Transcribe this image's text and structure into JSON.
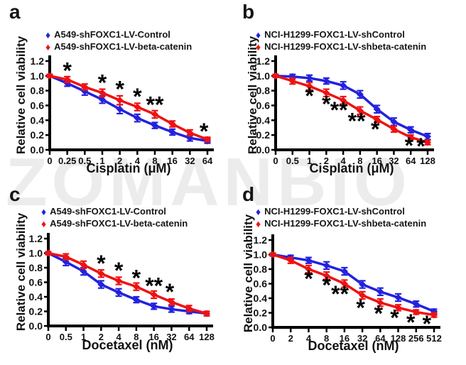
{
  "watermark": "ZOMANBIO",
  "icons": {
    "diamond": "♦"
  },
  "colors": {
    "control_blue": "#2222DE",
    "betacatenin_red": "#EE1212",
    "axis_black": "#000000",
    "asterisk_black": "#000000",
    "watermark_gray": "#ECECEC"
  },
  "chart_data": [
    {
      "type": "line",
      "label": "a",
      "xlabel": "Cisplatin (μM)",
      "ylabel": "Relative cell viability",
      "ylim": [
        0,
        1.2
      ],
      "yticks": [
        "0.0",
        "0.2",
        "0.4",
        "0.6",
        "0.8",
        "1.0",
        "1.2"
      ],
      "categories": [
        "0",
        "0.25",
        "0.5",
        "1",
        "2",
        "4",
        "8",
        "16",
        "32",
        "64"
      ],
      "legend_position": "top",
      "grid": false,
      "series": [
        {
          "name": "A549-shFOXC1-LV-Control",
          "color": "#2222DE",
          "values": [
            1.0,
            0.9,
            0.79,
            0.68,
            0.55,
            0.43,
            0.33,
            0.24,
            0.16,
            0.12
          ],
          "errors": [
            0.02,
            0.04,
            0.05,
            0.05,
            0.06,
            0.05,
            0.04,
            0.04,
            0.04,
            0.03
          ]
        },
        {
          "name": "A549-shFOXC1-LV-beta-catenin",
          "color": "#EE1212",
          "values": [
            1.0,
            0.95,
            0.85,
            0.77,
            0.67,
            0.58,
            0.48,
            0.35,
            0.23,
            0.14
          ],
          "errors": [
            0.02,
            0.04,
            0.04,
            0.05,
            0.06,
            0.05,
            0.05,
            0.04,
            0.04,
            0.03
          ]
        }
      ],
      "annotations": [
        {
          "text": "*",
          "x": 1,
          "y": 1.06
        },
        {
          "text": "*",
          "x": 3,
          "y": 0.9
        },
        {
          "text": "*",
          "x": 4,
          "y": 0.81
        },
        {
          "text": "*",
          "x": 5,
          "y": 0.71
        },
        {
          "text": "**",
          "x": 6,
          "y": 0.6
        },
        {
          "text": "*",
          "x": 8.8,
          "y": 0.24
        }
      ]
    },
    {
      "type": "line",
      "label": "b",
      "xlabel": "Cisplatin (μM)",
      "ylabel": "Relative cell viability",
      "ylim": [
        0,
        1.2
      ],
      "yticks": [
        "0.0",
        "0.2",
        "0.4",
        "0.6",
        "0.8",
        "1.0",
        "1.2"
      ],
      "categories": [
        "0",
        "0.5",
        "1",
        "2",
        "4",
        "8",
        "16",
        "32",
        "64",
        "128"
      ],
      "legend_position": "top",
      "grid": false,
      "series": [
        {
          "name": "NCI-H1299-FOXC1-LV-shControl",
          "color": "#2222DE",
          "values": [
            1.0,
            0.99,
            0.97,
            0.93,
            0.87,
            0.75,
            0.55,
            0.38,
            0.27,
            0.18
          ],
          "errors": [
            0.02,
            0.03,
            0.04,
            0.04,
            0.05,
            0.05,
            0.05,
            0.05,
            0.04,
            0.04
          ]
        },
        {
          "name": "NCI-H1299-FOXC1-LV-shbeta-catenin",
          "color": "#EE1212",
          "values": [
            1.0,
            0.93,
            0.86,
            0.77,
            0.67,
            0.53,
            0.41,
            0.28,
            0.17,
            0.1
          ],
          "errors": [
            0.02,
            0.04,
            0.05,
            0.05,
            0.05,
            0.05,
            0.04,
            0.04,
            0.03,
            0.03
          ]
        }
      ],
      "annotations": [
        {
          "text": "*",
          "x": 2,
          "y": 0.72
        },
        {
          "text": "*",
          "x": 3,
          "y": 0.61
        },
        {
          "text": "**",
          "x": 3.75,
          "y": 0.53
        },
        {
          "text": "**",
          "x": 4.8,
          "y": 0.38
        },
        {
          "text": "*",
          "x": 5.9,
          "y": 0.27
        },
        {
          "text": "*",
          "x": 7.9,
          "y": 0.05
        },
        {
          "text": "*",
          "x": 8.6,
          "y": 0.04
        }
      ]
    },
    {
      "type": "line",
      "label": "c",
      "xlabel": "Docetaxel (nM)",
      "ylabel": "Relative cell viability",
      "ylim": [
        0,
        1.2
      ],
      "yticks": [
        "0.0",
        "0.2",
        "0.4",
        "0.6",
        "0.8",
        "1.0",
        "1.2"
      ],
      "categories": [
        "0",
        "0.5",
        "1",
        "2",
        "4",
        "8",
        "16",
        "32",
        "64",
        "128"
      ],
      "legend_position": "top",
      "grid": false,
      "series": [
        {
          "name": "A549-shFOXC1-LV-Control",
          "color": "#2222DE",
          "values": [
            1.0,
            0.88,
            0.75,
            0.57,
            0.46,
            0.36,
            0.27,
            0.23,
            0.2,
            0.17
          ],
          "errors": [
            0.02,
            0.05,
            0.05,
            0.05,
            0.05,
            0.04,
            0.04,
            0.04,
            0.03,
            0.03
          ]
        },
        {
          "name": "A549-shFOXC1-LV-beta-catenin",
          "color": "#EE1212",
          "values": [
            1.0,
            0.95,
            0.84,
            0.72,
            0.62,
            0.54,
            0.43,
            0.33,
            0.24,
            0.17
          ],
          "errors": [
            0.02,
            0.04,
            0.05,
            0.05,
            0.05,
            0.05,
            0.05,
            0.04,
            0.04,
            0.03
          ]
        }
      ],
      "annotations": [
        {
          "text": "*",
          "x": 3,
          "y": 0.85
        },
        {
          "text": "*",
          "x": 4,
          "y": 0.75
        },
        {
          "text": "*",
          "x": 5,
          "y": 0.65
        },
        {
          "text": "**",
          "x": 6,
          "y": 0.54
        },
        {
          "text": "*",
          "x": 6.9,
          "y": 0.46
        }
      ]
    },
    {
      "type": "line",
      "label": "d",
      "xlabel": "Docetaxel (nM)",
      "ylabel": "Relative cell viability",
      "ylim": [
        0,
        1.2
      ],
      "yticks": [
        "0.0",
        "0.2",
        "0.4",
        "0.6",
        "0.8",
        "1.0",
        "1.2"
      ],
      "categories": [
        "0",
        "2",
        "4",
        "8",
        "16",
        "32",
        "64",
        "128",
        "256",
        "512"
      ],
      "legend_position": "top",
      "grid": false,
      "series": [
        {
          "name": "NCI-H1299-FOXC1-LV-shControl",
          "color": "#2222DE",
          "values": [
            1.0,
            0.96,
            0.92,
            0.85,
            0.77,
            0.59,
            0.49,
            0.41,
            0.32,
            0.22
          ],
          "errors": [
            0.02,
            0.03,
            0.04,
            0.05,
            0.05,
            0.05,
            0.05,
            0.05,
            0.04,
            0.03
          ]
        },
        {
          "name": "NCI-H1299-FOXC1-LV-shbeta-catenin",
          "color": "#EE1212",
          "values": [
            1.0,
            0.92,
            0.8,
            0.71,
            0.6,
            0.44,
            0.34,
            0.27,
            0.21,
            0.17
          ],
          "errors": [
            0.02,
            0.04,
            0.05,
            0.05,
            0.05,
            0.05,
            0.05,
            0.04,
            0.03,
            0.03
          ]
        }
      ],
      "annotations": [
        {
          "text": "*",
          "x": 2,
          "y": 0.66
        },
        {
          "text": "*",
          "x": 3,
          "y": 0.57
        },
        {
          "text": "**",
          "x": 3.75,
          "y": 0.45
        },
        {
          "text": "*",
          "x": 4.9,
          "y": 0.26
        },
        {
          "text": "*",
          "x": 5.9,
          "y": 0.18
        },
        {
          "text": "*",
          "x": 6.8,
          "y": 0.12
        },
        {
          "text": "*",
          "x": 7.7,
          "y": 0.06
        },
        {
          "text": "*",
          "x": 8.6,
          "y": 0.04
        }
      ]
    }
  ]
}
